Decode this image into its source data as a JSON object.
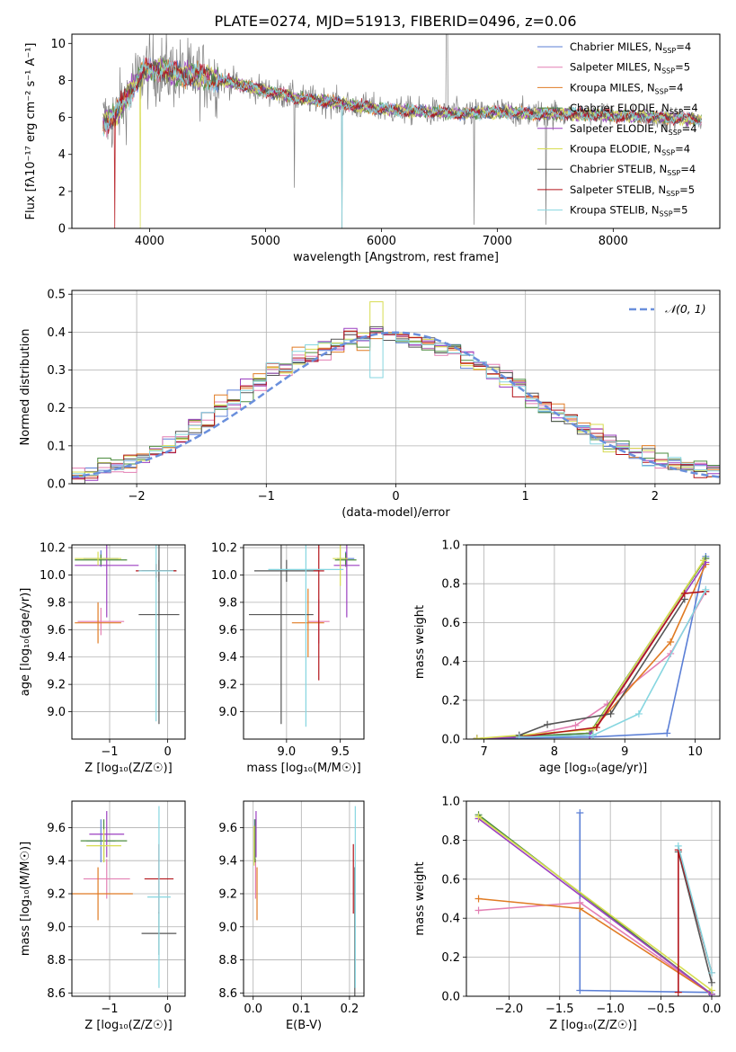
{
  "figure": {
    "title": "PLATE=0274, MJD=51913, FIBERID=0496, z=0.06"
  },
  "colors": {
    "Chabrier MILES": "#5b7fd6",
    "Salpeter MILES": "#e37fb3",
    "Kroupa MILES": "#e07b24",
    "Chabrier ELODIE": "#4c8c3f",
    "Salpeter ELODIE": "#9b3fc0",
    "Kroupa ELODIE": "#d7dc50",
    "Chabrier STELIB": "#555555",
    "Salpeter STELIB": "#b3141b",
    "Kroupa STELIB": "#86d6e0",
    "data": "#808080",
    "normal": "#6a8fdc"
  },
  "chart_data": [
    {
      "id": "spectrum",
      "type": "line",
      "xlabel": "wavelength [Angstrom, rest frame]",
      "ylabel": "Flux [fλ10⁻¹⁷ erg cm⁻² s⁻¹ A⁻¹]",
      "xlim": [
        3330,
        8920
      ],
      "ylim": [
        0,
        10.5
      ],
      "xticks": [
        4000,
        5000,
        6000,
        7000,
        8000
      ],
      "yticks": [
        0,
        2,
        4,
        6,
        8,
        10
      ],
      "grid": false,
      "legend_position": "top-right",
      "legend": [
        {
          "label": "Chabrier MILES, N",
          "sub": "SSP",
          "suffix": "=4"
        },
        {
          "label": "Salpeter MILES, N",
          "sub": "SSP",
          "suffix": "=5"
        },
        {
          "label": "Kroupa MILES, N",
          "sub": "SSP",
          "suffix": "=4"
        },
        {
          "label": "Chabrier ELODIE, N",
          "sub": "SSP",
          "suffix": "=4"
        },
        {
          "label": "Salpeter ELODIE, N",
          "sub": "SSP",
          "suffix": "=4"
        },
        {
          "label": "Kroupa ELODIE, N",
          "sub": "SSP",
          "suffix": "=4"
        },
        {
          "label": "Chabrier STELIB, N",
          "sub": "SSP",
          "suffix": "=4"
        },
        {
          "label": "Salpeter STELIB, N",
          "sub": "SSP",
          "suffix": "=5"
        },
        {
          "label": "Kroupa STELIB, N",
          "sub": "SSP",
          "suffix": "=5"
        }
      ],
      "continuum": [
        [
          3600,
          5.8
        ],
        [
          3700,
          6.0
        ],
        [
          3850,
          7.6
        ],
        [
          3950,
          8.5
        ],
        [
          4100,
          8.6
        ],
        [
          4300,
          8.3
        ],
        [
          4500,
          8.2
        ],
        [
          4700,
          7.9
        ],
        [
          4900,
          7.6
        ],
        [
          5100,
          7.3
        ],
        [
          5300,
          7.0
        ],
        [
          5500,
          6.9
        ],
        [
          5800,
          6.6
        ],
        [
          6100,
          6.4
        ],
        [
          6400,
          6.3
        ],
        [
          6700,
          6.2
        ],
        [
          7000,
          6.3
        ],
        [
          7300,
          6.2
        ],
        [
          7600,
          6.2
        ],
        [
          8000,
          6.1
        ],
        [
          8400,
          6.0
        ],
        [
          8700,
          5.9
        ]
      ]
    },
    {
      "id": "residuals",
      "type": "step",
      "xlabel": "(data-model)/error",
      "ylabel": "Normed distribution",
      "xlim": [
        -2.5,
        2.5
      ],
      "ylim": [
        0,
        0.51
      ],
      "xticks": [
        -2,
        -1,
        0,
        1,
        2
      ],
      "yticks": [
        0.0,
        0.1,
        0.2,
        0.3,
        0.4,
        0.5
      ],
      "grid": true,
      "legend_position": "top-right",
      "legend": [
        {
          "label": "𝒩(0, 1)"
        }
      ],
      "bin_width": 0.1,
      "reference_values": [
        0.022,
        0.028,
        0.037,
        0.045,
        0.058,
        0.07,
        0.087,
        0.103,
        0.12,
        0.147,
        0.17,
        0.2,
        0.227,
        0.25,
        0.27,
        0.3,
        0.31,
        0.33,
        0.34,
        0.36,
        0.37,
        0.39,
        0.38,
        0.4,
        0.395,
        0.385,
        0.38,
        0.37,
        0.36,
        0.35,
        0.33,
        0.31,
        0.3,
        0.28,
        0.26,
        0.23,
        0.2,
        0.185,
        0.17,
        0.15,
        0.13,
        0.11,
        0.095,
        0.08,
        0.07,
        0.06,
        0.05,
        0.045,
        0.04,
        0.038
      ]
    },
    {
      "id": "age-vs-Z",
      "type": "errorbar",
      "xlabel": "Z [log₁₀(Z/Z☉)]",
      "ylabel": "age  [log₁₀(age/yr)]",
      "xlim": [
        -1.65,
        0.3
      ],
      "ylim": [
        8.8,
        10.22
      ],
      "xticks": [
        -1,
        0
      ],
      "yticks": [
        9.0,
        9.2,
        9.4,
        9.6,
        9.8,
        10.0,
        10.2
      ],
      "grid": true,
      "points": [
        {
          "s": "Chabrier MILES",
          "x": -1.15,
          "xe": 0.3,
          "y": 10.12,
          "ye": 0.06
        },
        {
          "s": "Salpeter MILES",
          "x": -1.15,
          "xe": 0.4,
          "y": 9.66,
          "ye": 0.1
        },
        {
          "s": "Kroupa MILES",
          "x": -1.2,
          "xe": 0.4,
          "y": 9.65,
          "ye": 0.15
        },
        {
          "s": "Chabrier ELODIE",
          "x": -1.15,
          "xe": 0.45,
          "y": 10.11,
          "ye": 0.04
        },
        {
          "s": "Salpeter ELODIE",
          "x": -1.05,
          "xe": 0.55,
          "y": 10.07,
          "ye": 0.38
        },
        {
          "s": "Kroupa ELODIE",
          "x": -1.2,
          "xe": 0.4,
          "y": 10.12,
          "ye": 0.05
        },
        {
          "s": "Chabrier STELIB",
          "x": -0.15,
          "xe": 0.3,
          "y": 10.03,
          "ye": 0.08
        },
        {
          "s": "Chabrier STELIB",
          "x": -0.15,
          "xe": 0.35,
          "y": 9.71,
          "ye": 0.8
        },
        {
          "s": "Salpeter STELIB",
          "x": -0.2,
          "xe": 0.35,
          "y": 10.03,
          "ye": 0.05
        },
        {
          "s": "Kroupa STELIB",
          "x": -0.2,
          "xe": 0.3,
          "y": 10.03,
          "ye": 1.1
        }
      ]
    },
    {
      "id": "age-vs-mass",
      "type": "errorbar",
      "xlabel": "mass [log₁₀(M/M☉)]",
      "ylabel": "",
      "xlim": [
        8.6,
        9.72
      ],
      "ylim": [
        8.8,
        10.22
      ],
      "xticks": [
        9.0,
        9.5
      ],
      "yticks": [
        9.0,
        9.2,
        9.4,
        9.6,
        9.8,
        10.0,
        10.2
      ],
      "grid": true,
      "points": [
        {
          "s": "Chabrier MILES",
          "x": 9.55,
          "xe": 0.08,
          "y": 10.12,
          "ye": 0.05
        },
        {
          "s": "Salpeter MILES",
          "x": 9.3,
          "xe": 0.1,
          "y": 9.66,
          "ye": 0.16
        },
        {
          "s": "Kroupa MILES",
          "x": 9.2,
          "xe": 0.15,
          "y": 9.65,
          "ye": 0.25
        },
        {
          "s": "Chabrier ELODIE",
          "x": 9.55,
          "xe": 0.1,
          "y": 10.11,
          "ye": 0.05
        },
        {
          "s": "Salpeter ELODIE",
          "x": 9.56,
          "xe": 0.12,
          "y": 10.07,
          "ye": 0.38
        },
        {
          "s": "Kroupa ELODIE",
          "x": 9.5,
          "xe": 0.07,
          "y": 10.12,
          "ye": 0.2
        },
        {
          "s": "Chabrier STELIB",
          "x": 8.95,
          "xe": 0.3,
          "y": 9.71,
          "ye": 0.8
        },
        {
          "s": "Chabrier STELIB",
          "x": 9.0,
          "xe": 0.3,
          "y": 10.03,
          "ye": 0.08
        },
        {
          "s": "Salpeter STELIB",
          "x": 9.3,
          "xe": 0.05,
          "y": 10.03,
          "ye": 0.8
        },
        {
          "s": "Kroupa STELIB",
          "x": 9.18,
          "xe": 0.35,
          "y": 10.04,
          "ye": 1.15
        }
      ]
    },
    {
      "id": "massweight-vs-age",
      "type": "line",
      "xlabel": "age  [log₁₀(age/yr)]",
      "ylabel": "mass weight",
      "xlim": [
        6.75,
        10.35
      ],
      "ylim": [
        0,
        1.0
      ],
      "xticks": [
        7,
        8,
        9,
        10
      ],
      "yticks": [
        0.0,
        0.2,
        0.4,
        0.6,
        0.8,
        1.0
      ],
      "grid": true,
      "series": [
        {
          "name": "Chabrier MILES",
          "x": [
            6.9,
            8.5,
            9.6,
            10.15
          ],
          "y": [
            0.003,
            0.01,
            0.03,
            0.94
          ]
        },
        {
          "name": "Salpeter MILES",
          "x": [
            7.5,
            8.3,
            8.75,
            9.65,
            10.15
          ],
          "y": [
            0.01,
            0.07,
            0.18,
            0.44,
            0.76
          ]
        },
        {
          "name": "Kroupa MILES",
          "x": [
            6.9,
            8.5,
            9.65,
            10.15
          ],
          "y": [
            0.003,
            0.03,
            0.5,
            0.9
          ]
        },
        {
          "name": "Chabrier ELODIE",
          "x": [
            6.9,
            8.5,
            10.15
          ],
          "y": [
            0.003,
            0.03,
            0.93
          ]
        },
        {
          "name": "Salpeter ELODIE",
          "x": [
            6.9,
            8.5,
            10.15
          ],
          "y": [
            0.003,
            0.02,
            0.91
          ]
        },
        {
          "name": "Kroupa ELODIE",
          "x": [
            6.9,
            8.55,
            10.12
          ],
          "y": [
            0.003,
            0.05,
            0.92
          ]
        },
        {
          "name": "Chabrier STELIB",
          "x": [
            7.5,
            7.9,
            8.8,
            9.85
          ],
          "y": [
            0.02,
            0.075,
            0.13,
            0.72
          ]
        },
        {
          "name": "Salpeter STELIB",
          "x": [
            7.5,
            8.6,
            9.85,
            10.15
          ],
          "y": [
            0.01,
            0.06,
            0.75,
            0.76
          ]
        },
        {
          "name": "Kroupa STELIB",
          "x": [
            7.5,
            8.55,
            9.2,
            10.15
          ],
          "y": [
            0.01,
            0.02,
            0.13,
            0.77
          ]
        }
      ]
    },
    {
      "id": "mass-vs-Z",
      "type": "errorbar",
      "xlabel": "Z [log₁₀(Z/Z☉)]",
      "ylabel": "mass [log₁₀(M/M☉)]",
      "xlim": [
        -1.65,
        0.3
      ],
      "ylim": [
        8.58,
        9.76
      ],
      "xticks": [
        -1,
        0
      ],
      "yticks": [
        8.6,
        8.8,
        9.0,
        9.2,
        9.4,
        9.6
      ],
      "grid": true,
      "points": [
        {
          "s": "Chabrier MILES",
          "x": -1.15,
          "xe": 0.25,
          "y": 9.52,
          "ye": 0.13
        },
        {
          "s": "Salpeter MILES",
          "x": -1.05,
          "xe": 0.4,
          "y": 9.29,
          "ye": 0.12
        },
        {
          "s": "Kroupa MILES",
          "x": -1.2,
          "xe": 0.6,
          "y": 9.2,
          "ye": 0.16
        },
        {
          "s": "Chabrier ELODIE",
          "x": -1.1,
          "xe": 0.4,
          "y": 9.52,
          "ye": 0.13
        },
        {
          "s": "Salpeter ELODIE",
          "x": -1.05,
          "xe": 0.3,
          "y": 9.56,
          "ye": 0.14
        },
        {
          "s": "Kroupa ELODIE",
          "x": -1.1,
          "xe": 0.3,
          "y": 9.49,
          "ye": 0.1
        },
        {
          "s": "Chabrier STELIB",
          "x": -0.15,
          "xe": 0.3,
          "y": 8.96,
          "ye": 0.13
        },
        {
          "s": "Salpeter STELIB",
          "x": -0.15,
          "xe": 0.25,
          "y": 9.29,
          "ye": 0.21
        },
        {
          "s": "Kroupa STELIB",
          "x": -0.15,
          "xe": 0.2,
          "y": 9.18,
          "ye": 0.55
        }
      ]
    },
    {
      "id": "mass-vs-EBV",
      "type": "errorbar",
      "xlabel": "E(B-V)",
      "ylabel": "",
      "xlim": [
        -0.02,
        0.23
      ],
      "ylim": [
        8.58,
        9.76
      ],
      "xticks": [
        0.0,
        0.1,
        0.2
      ],
      "yticks": [
        8.6,
        8.8,
        9.0,
        9.2,
        9.4,
        9.6
      ],
      "grid": true,
      "points": [
        {
          "s": "Chabrier MILES",
          "x": 0.003,
          "xe": 0,
          "y": 9.52,
          "ye": 0.13
        },
        {
          "s": "Salpeter MILES",
          "x": 0.005,
          "xe": 0,
          "y": 9.29,
          "ye": 0.12
        },
        {
          "s": "Kroupa MILES",
          "x": 0.008,
          "xe": 0,
          "y": 9.2,
          "ye": 0.16
        },
        {
          "s": "Chabrier ELODIE",
          "x": 0.004,
          "xe": 0,
          "y": 9.52,
          "ye": 0.13
        },
        {
          "s": "Salpeter ELODIE",
          "x": 0.006,
          "xe": 0,
          "y": 9.56,
          "ye": 0.14
        },
        {
          "s": "Kroupa ELODIE",
          "x": 0.002,
          "xe": 0,
          "y": 9.49,
          "ye": 0.12
        },
        {
          "s": "Chabrier STELIB",
          "x": 0.211,
          "xe": 0,
          "y": 8.96,
          "ye": 0.4
        },
        {
          "s": "Salpeter STELIB",
          "x": 0.208,
          "xe": 0,
          "y": 9.29,
          "ye": 0.21
        },
        {
          "s": "Kroupa STELIB",
          "x": 0.212,
          "xe": 0,
          "y": 9.18,
          "ye": 0.55
        }
      ]
    },
    {
      "id": "massweight-vs-Z",
      "type": "line",
      "xlabel": "Z [log₁₀(Z/Z☉)]",
      "ylabel": "mass weight",
      "xlim": [
        -2.42,
        0.08
      ],
      "ylim": [
        0,
        1.0
      ],
      "xticks": [
        -2.0,
        -1.5,
        -1.0,
        -0.5,
        0.0
      ],
      "yticks": [
        0.0,
        0.2,
        0.4,
        0.6,
        0.8,
        1.0
      ],
      "grid": true,
      "series": [
        {
          "name": "Chabrier MILES",
          "x": [
            -1.3,
            -1.3,
            -0.02
          ],
          "y": [
            0.94,
            0.03,
            0.02
          ]
        },
        {
          "name": "Salpeter MILES",
          "x": [
            -2.3,
            -1.3,
            0.0
          ],
          "y": [
            0.44,
            0.48,
            0.01
          ]
        },
        {
          "name": "Kroupa MILES",
          "x": [
            -2.3,
            -1.3,
            0.0
          ],
          "y": [
            0.5,
            0.45,
            0.01
          ]
        },
        {
          "name": "Chabrier ELODIE",
          "x": [
            -2.3,
            0.0
          ],
          "y": [
            0.93,
            0.01
          ]
        },
        {
          "name": "Salpeter ELODIE",
          "x": [
            -2.3,
            0.0
          ],
          "y": [
            0.91,
            0.01
          ]
        },
        {
          "name": "Kroupa ELODIE",
          "x": [
            -2.3,
            0.0
          ],
          "y": [
            0.92,
            0.03
          ]
        },
        {
          "name": "Chabrier STELIB",
          "x": [
            -0.33,
            0.0
          ],
          "y": [
            0.74,
            0.07
          ]
        },
        {
          "name": "Salpeter STELIB",
          "x": [
            -0.33,
            -0.33,
            0.0
          ],
          "y": [
            0.02,
            0.75,
            0.12
          ]
        },
        {
          "name": "Kroupa STELIB",
          "x": [
            -0.33,
            0.0
          ],
          "y": [
            0.77,
            0.12
          ]
        }
      ]
    }
  ]
}
